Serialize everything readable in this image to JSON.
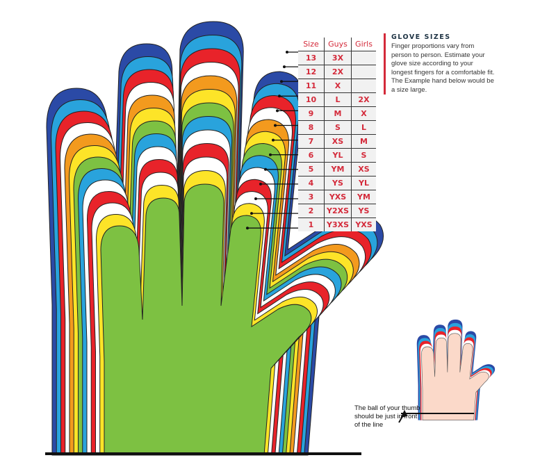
{
  "size_table": {
    "headers": [
      "Size",
      "Guys",
      "Girls"
    ],
    "rows": [
      [
        "13",
        "3X",
        ""
      ],
      [
        "12",
        "2X",
        ""
      ],
      [
        "11",
        "X",
        ""
      ],
      [
        "10",
        "L",
        "2X"
      ],
      [
        "9",
        "M",
        "X"
      ],
      [
        "8",
        "S",
        "L"
      ],
      [
        "7",
        "XS",
        "M"
      ],
      [
        "6",
        "YL",
        "S"
      ],
      [
        "5",
        "YM",
        "XS"
      ],
      [
        "4",
        "YS",
        "YL"
      ],
      [
        "3",
        "YXS",
        "YM"
      ],
      [
        "2",
        "Y2XS",
        "YS"
      ],
      [
        "1",
        "Y3XS",
        "YXS"
      ]
    ]
  },
  "info": {
    "title": "GLOVE SIZES",
    "body": "Finger proportions vary from person to person. Estimate your glove size according to your longest fingers for a comfortable fit. The Example hand below would be a size large."
  },
  "example_note": "The ball of your thumb should be just in front of the line",
  "layer_colors": [
    "#2b4aa6",
    "#29a3dc",
    "#e8232a",
    "#ffffff",
    "#f39a1e",
    "#fde428",
    "#7dc142",
    "#29a3dc",
    "#ffffff",
    "#e8232a",
    "#ffffff",
    "#fde428",
    "#7dc142"
  ],
  "accent_color": "#d42a3a",
  "skin_color": "#fbd9c9"
}
